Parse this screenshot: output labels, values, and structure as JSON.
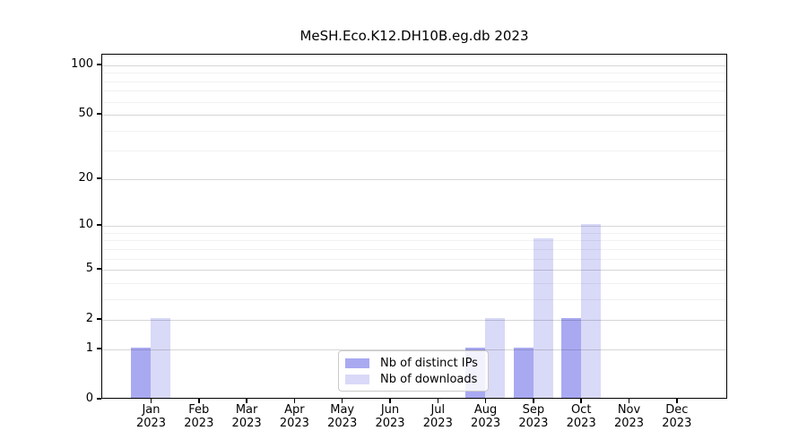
{
  "chart_data": {
    "type": "bar",
    "title": "MeSH.Eco.K12.DH10B.eg.db 2023",
    "categories": [
      "Jan",
      "Feb",
      "Mar",
      "Apr",
      "May",
      "Jun",
      "Jul",
      "Aug",
      "Sep",
      "Oct",
      "Nov",
      "Dec"
    ],
    "x_tick_year": "2023",
    "series": [
      {
        "name": "Nb of distinct IPs",
        "color": "#a9a9f2",
        "values": [
          1,
          0,
          0,
          0,
          0,
          0,
          0,
          1,
          1,
          2,
          0,
          0
        ]
      },
      {
        "name": "Nb of downloads",
        "color": "#d9d9f8",
        "values": [
          2,
          0,
          0,
          0,
          0,
          0,
          0,
          2,
          8,
          10,
          0,
          0
        ]
      }
    ],
    "yaxis": {
      "scale": "log1p",
      "tick_values": [
        0,
        1,
        2,
        5,
        10,
        20,
        50,
        100
      ],
      "tick_labels": [
        "0",
        "1",
        "2",
        "5",
        "10",
        "20",
        "50",
        "100"
      ],
      "minor_gridline_values": [
        3,
        4,
        6,
        7,
        8,
        9,
        30,
        40,
        60,
        70,
        80,
        90
      ],
      "ylim": [
        0,
        116
      ]
    },
    "legend": {
      "position": "lower center"
    },
    "grid": true,
    "colors": {
      "grid_major": "#d8d8d8",
      "grid_minor": "#f2f2f2",
      "axis": "#000000"
    }
  }
}
